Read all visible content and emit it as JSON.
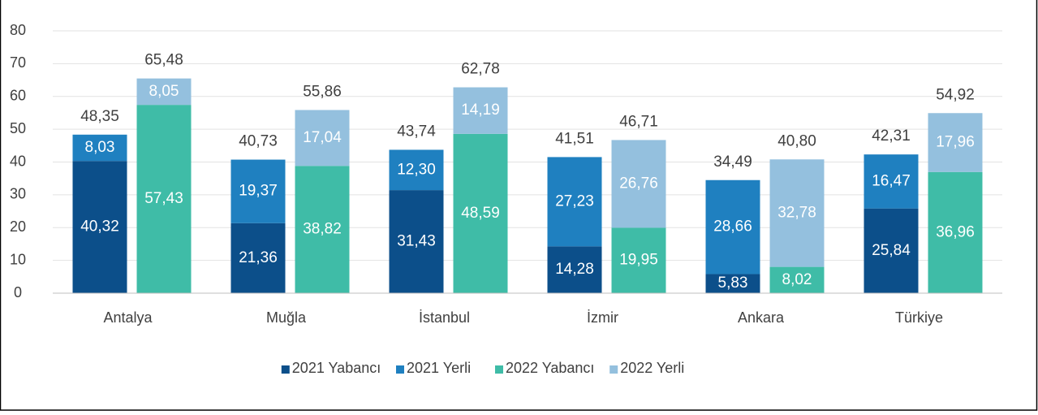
{
  "chart_data": {
    "type": "bar",
    "categories": [
      "Antalya",
      "Muğla",
      "İstanbul",
      "İzmir",
      "Ankara",
      "Türkiye"
    ],
    "groups": [
      {
        "series": [
          {
            "name": "2021 Yabancı",
            "color": "#0c4f8a",
            "values": [
              40.32,
              21.36,
              31.43,
              14.28,
              5.83,
              25.84
            ],
            "value_labels": [
              "40,32",
              "21,36",
              "31,43",
              "14,28",
              "5,83",
              "25,84"
            ]
          },
          {
            "name": "2021 Yerli",
            "color": "#1f80c0",
            "values": [
              8.03,
              19.37,
              12.3,
              27.23,
              28.66,
              16.47
            ],
            "value_labels": [
              "8,03",
              "19,37",
              "12,30",
              "27,23",
              "28,66",
              "16,47"
            ]
          }
        ],
        "totals": [
          48.35,
          40.73,
          43.74,
          41.51,
          34.49,
          42.31
        ],
        "total_labels": [
          "48,35",
          "40,73",
          "43,74",
          "41,51",
          "34,49",
          "42,31"
        ]
      },
      {
        "series": [
          {
            "name": "2022 Yabancı",
            "color": "#3fbca7",
            "values": [
              57.43,
              38.82,
              48.59,
              19.95,
              8.02,
              36.96
            ],
            "value_labels": [
              "57,43",
              "38,82",
              "48,59",
              "19,95",
              "8,02",
              "36,96"
            ]
          },
          {
            "name": "2022 Yerli",
            "color": "#94c0de",
            "values": [
              8.05,
              17.04,
              14.19,
              26.76,
              32.78,
              17.96
            ],
            "value_labels": [
              "8,05",
              "17,04",
              "14,19",
              "26,76",
              "32,78",
              "17,96"
            ]
          }
        ],
        "totals": [
          65.48,
          55.86,
          62.78,
          46.71,
          40.8,
          54.92
        ],
        "total_labels": [
          "65,48",
          "55,86",
          "62,78",
          "46,71",
          "40,80",
          "54,92"
        ]
      }
    ],
    "ylim": [
      0,
      80
    ],
    "yticks": [
      0,
      10,
      20,
      30,
      40,
      50,
      60,
      70,
      80
    ],
    "grid": true
  }
}
